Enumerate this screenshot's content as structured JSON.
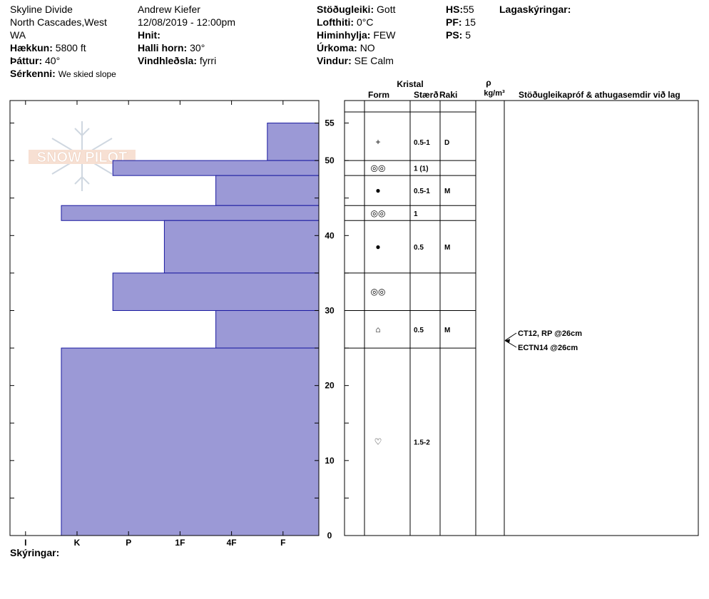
{
  "header": {
    "location_line1": "Skyline Divide",
    "location_line2": "North Cascades,West",
    "location_line3": "WA",
    "elevation_label": "Hækkun:",
    "elevation_value": "5800 ft",
    "aspect_label": "Þáttur:",
    "aspect_value": "40°",
    "features_label": "Sérkenni:",
    "features_value": "We skied slope",
    "observer": "Andrew Kiefer",
    "datetime": "12/08/2019 - 12:00pm",
    "coords_label": "Hnit:",
    "slope_label": "Halli horn:",
    "slope_value": "30°",
    "wind_loading_label": "Vindhleðsla:",
    "wind_loading_value": "fyrri",
    "stability_label": "Stöðugleiki:",
    "stability_value": "Gott",
    "airtemp_label": "Lofthiti:",
    "airtemp_value": "0°C",
    "sky_label": "Himinhylja:",
    "sky_value": "FEW",
    "precip_label": "Úrkoma:",
    "precip_value": "NO",
    "wind_label": "Vindur:",
    "wind_value": "SE Calm",
    "hs_label": "HS:",
    "hs_value": "55",
    "pf_label": "PF:",
    "pf_value": "15",
    "ps_label": "PS:",
    "ps_value": "5",
    "layer_notes_label": "Lagaskýringar:",
    "notes_label": "Skýringar:"
  },
  "watermark": "SNOW PILOT",
  "table_headers": {
    "crystal": "Kristal",
    "form": "Form",
    "size": "Stærð",
    "moisture": "Raki",
    "rho": "ρ",
    "density_unit": "kg/m³",
    "tests": "Stöðugleikapróf & athugasemdir við lag"
  },
  "tests": [
    {
      "text": "CT12, RP @26cm",
      "depth": 26
    },
    {
      "text": "ECTN14 @26cm",
      "depth": 26
    }
  ],
  "chart_data": {
    "type": "bar",
    "orientation": "horizontal",
    "y_label_ticks": [
      0,
      10,
      20,
      30,
      40,
      50,
      55
    ],
    "y_range": [
      0,
      58
    ],
    "hardness_scale": [
      "I",
      "K",
      "P",
      "1F",
      "4F",
      "F"
    ],
    "hardness_index": {
      "F": 1,
      "4F": 2,
      "1F": 3,
      "P": 4,
      "K": 5,
      "I": 6
    },
    "fill_color": "#9b99d6",
    "edge_color": "#1a1aa0",
    "layers": [
      {
        "top": 55,
        "bottom": 50,
        "hardness": "F",
        "form": "+",
        "size": "0.5-1",
        "moisture": "D"
      },
      {
        "top": 50,
        "bottom": 48,
        "hardness": "P",
        "form": "◎◎",
        "size": "1 (1)",
        "moisture": ""
      },
      {
        "top": 48,
        "bottom": 44,
        "hardness": "4F",
        "form": "●",
        "size": "0.5-1",
        "moisture": "M"
      },
      {
        "top": 44,
        "bottom": 42,
        "hardness": "K",
        "form": "◎◎",
        "size": "1",
        "moisture": ""
      },
      {
        "top": 42,
        "bottom": 35,
        "hardness": "1F",
        "form": "●",
        "size": "0.5",
        "moisture": "M"
      },
      {
        "top": 35,
        "bottom": 30,
        "hardness": "P",
        "form": "◎◎",
        "size": "",
        "moisture": ""
      },
      {
        "top": 30,
        "bottom": 25,
        "hardness": "4F",
        "form": "⌂",
        "size": "0.5",
        "moisture": "M"
      },
      {
        "top": 25,
        "bottom": 0,
        "hardness": "K",
        "form": "♡",
        "size": "1.5-2",
        "moisture": ""
      }
    ]
  }
}
